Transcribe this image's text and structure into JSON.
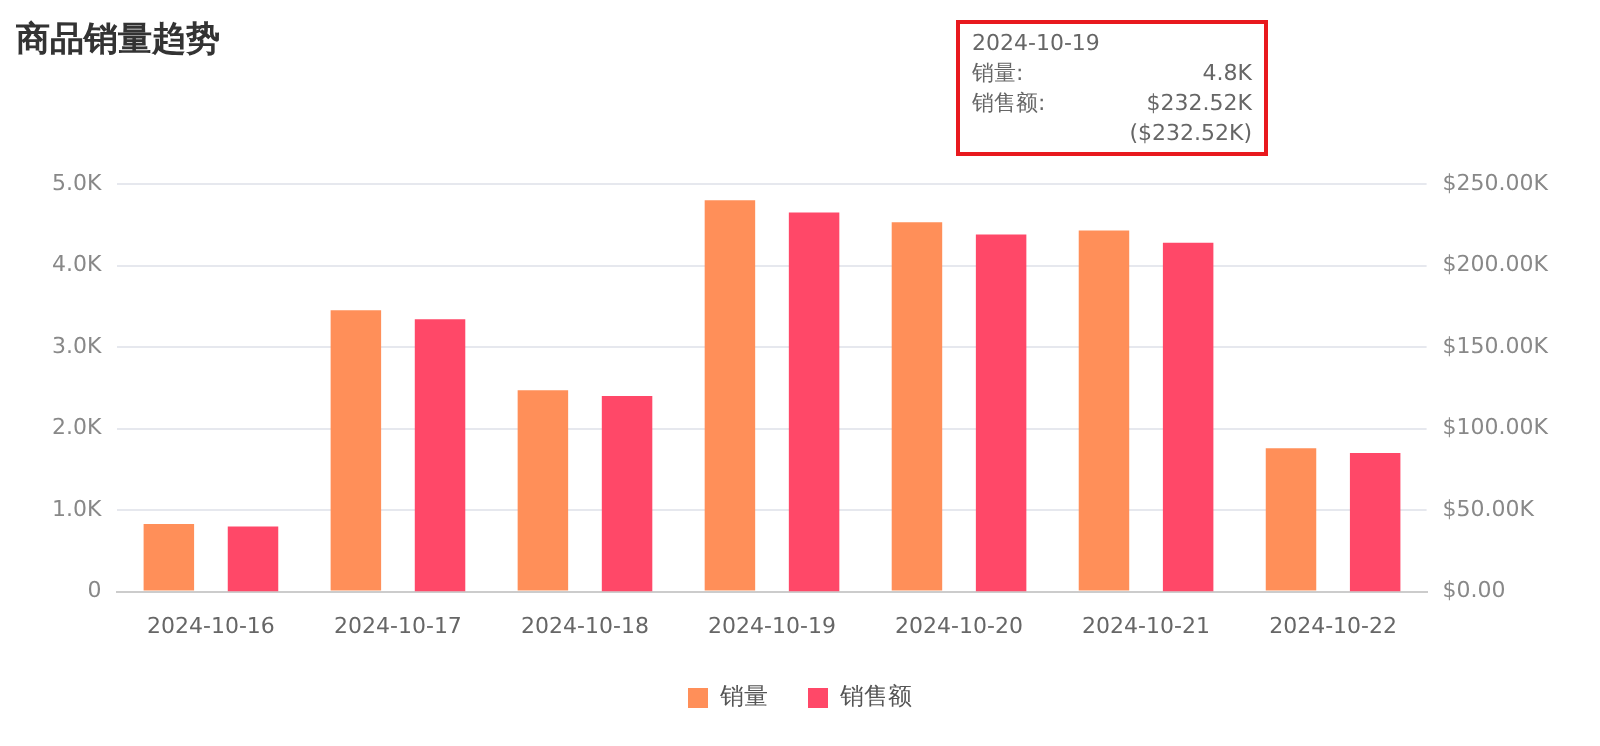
{
  "chart_data": {
    "type": "bar",
    "title": "商品销量趋势",
    "categories": [
      "2024-10-16",
      "2024-10-17",
      "2024-10-18",
      "2024-10-19",
      "2024-10-20",
      "2024-10-21",
      "2024-10-22"
    ],
    "series": [
      {
        "name": "销量",
        "color": "#ff8f59",
        "values": [
          0.83,
          3.45,
          2.47,
          4.8,
          4.53,
          4.43,
          1.76
        ]
      },
      {
        "name": "销售额",
        "color": "#ff4868",
        "axis": "y2",
        "values": [
          40,
          167,
          120,
          232.52,
          219,
          214,
          85
        ]
      }
    ],
    "ylim": [
      0,
      5
    ],
    "yticks": [
      0,
      {
        "value": 1,
        "label": "1.0K"
      },
      {
        "value": 2,
        "label": "2.0K"
      },
      {
        "value": 3,
        "label": "3.0K"
      },
      {
        "value": 4,
        "label": "4.0K"
      },
      {
        "value": 5,
        "label": "5.0K"
      }
    ],
    "y2lim": [
      0,
      250
    ],
    "y2ticks": [
      {
        "value": 0,
        "label": "$0.00"
      },
      {
        "value": 50,
        "label": "$50.00K"
      },
      {
        "value": 100,
        "label": "$100.00K"
      },
      {
        "value": 150,
        "label": "$150.00K"
      },
      {
        "value": 200,
        "label": "$200.00K"
      },
      {
        "value": 250,
        "label": "$250.00K"
      }
    ],
    "grid": "y",
    "legend": "bottom",
    "annotations": [
      "2024-10-19",
      "销量:",
      "4.8K",
      "销售额:",
      "$232.52K",
      "($232.52K)"
    ]
  }
}
